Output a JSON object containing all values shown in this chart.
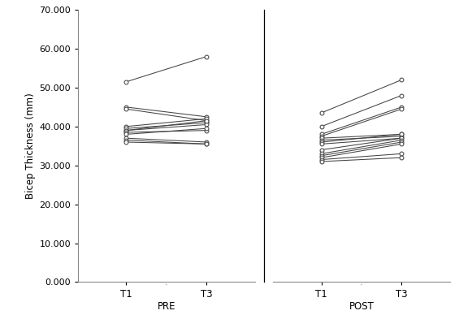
{
  "pre_t1": [
    51.5,
    45.0,
    44.5,
    40.0,
    39.5,
    39.0,
    39.0,
    38.5,
    38.0,
    37.0,
    36.5,
    36.0
  ],
  "pre_t3": [
    58.0,
    42.5,
    41.5,
    42.0,
    41.0,
    40.5,
    41.5,
    39.0,
    39.5,
    36.0,
    35.5,
    35.5
  ],
  "post_t1": [
    43.5,
    40.0,
    38.0,
    37.5,
    37.0,
    36.5,
    36.0,
    35.5,
    34.0,
    33.0,
    32.5,
    32.0,
    31.5,
    31.0
  ],
  "post_t3": [
    52.0,
    48.0,
    45.0,
    44.5,
    38.0,
    37.5,
    38.0,
    37.0,
    37.0,
    36.5,
    36.0,
    35.5,
    33.0,
    32.0
  ],
  "ylabel": "Bicep Thickness (mm)",
  "ylim": [
    0.0,
    70.0
  ],
  "yticks": [
    0.0,
    10.0,
    20.0,
    30.0,
    40.0,
    50.0,
    60.0,
    70.0
  ],
  "group_labels": [
    "PRE",
    "POST"
  ],
  "time_labels": [
    "T1",
    "T3"
  ],
  "line_color": "#444444",
  "marker_facecolor": "white",
  "marker_edgecolor": "#444444",
  "bg_color": "white",
  "spine_color": "#888888"
}
